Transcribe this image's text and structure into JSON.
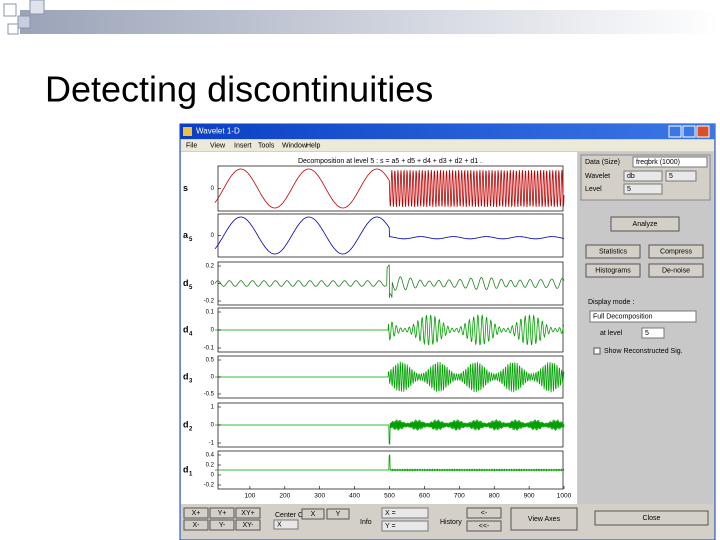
{
  "slide": {
    "title": "Detecting discontinuities"
  },
  "window": {
    "title": "Wavelet 1-D",
    "menu": [
      "File",
      "View",
      "Insert",
      "Tools",
      "Window",
      "Help"
    ]
  },
  "plot": {
    "title": "Decomposition at level 5 : s = a5 + d5 + d4 + d3 + d2 + d1 .",
    "rows": [
      {
        "label": "s",
        "color": "#c00000",
        "yticks": [
          "0"
        ]
      },
      {
        "label": "a",
        "sub": "5",
        "color": "#0000b0",
        "yticks": [
          "0"
        ]
      },
      {
        "label": "d",
        "sub": "5",
        "color": "#208020",
        "yticks": [
          "0.2",
          "0",
          "-0.2"
        ]
      },
      {
        "label": "d",
        "sub": "4",
        "color": "#00a000",
        "yticks": [
          "0.1",
          "0",
          "-0.1"
        ]
      },
      {
        "label": "d",
        "sub": "3",
        "color": "#00a000",
        "yticks": [
          "0.5",
          "0",
          "-0.5"
        ]
      },
      {
        "label": "d",
        "sub": "2",
        "color": "#00a000",
        "yticks": [
          "1",
          "0",
          "-1"
        ]
      },
      {
        "label": "d",
        "sub": "1",
        "color": "#00a000",
        "yticks": [
          "0.4",
          "0.2",
          "0",
          "-0.2"
        ]
      }
    ],
    "xticks": [
      "100",
      "200",
      "300",
      "400",
      "500",
      "600",
      "700",
      "800",
      "900",
      "1000"
    ]
  },
  "controls": {
    "data_label": "Data (Size)",
    "data_value": "freqbrk (1000)",
    "wavelet_label": "Wavelet",
    "wavelet_family": "db",
    "wavelet_order": "5",
    "level_label": "Level",
    "level_value": "5",
    "analyze": "Analyze",
    "statistics": "Statistics",
    "compress": "Compress",
    "histograms": "Histograms",
    "denoise": "De-noise",
    "display_mode_label": "Display mode :",
    "display_mode": "Full Decomposition",
    "at_level_label": "at level",
    "at_level_value": "5",
    "show_option": "Show Reconstructed Sig."
  },
  "bottom": {
    "zoom": [
      "X+",
      "Y+",
      "XY+",
      "X-",
      "Y-",
      "XY-"
    ],
    "center_label": "Center On",
    "center": [
      "X",
      "Y"
    ],
    "info": "Info",
    "x_eq": "X =",
    "y_eq": "Y =",
    "history": "History",
    "history_buttons": [
      "<-",
      "<<-"
    ],
    "view_axes": "View Axes",
    "close": "Close"
  }
}
